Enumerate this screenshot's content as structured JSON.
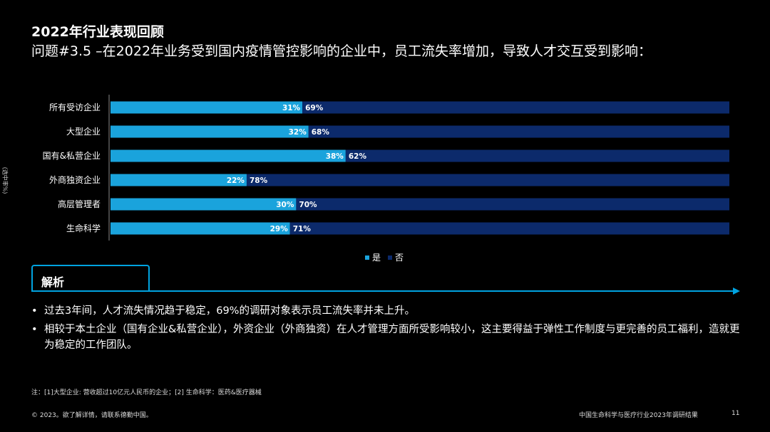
{
  "title": "2022年行业表现回顾",
  "subtitle": "问题#3.5 –在2022年业务受到国内疫情管控影响的企业中，员工流失率增加，导致人才交互受到影响：",
  "side_label": "(选中率%)",
  "analysis_label": "解析",
  "bullets": [
    "过去3年间，人才流失情况趋于稳定，69%的调研对象表示员工流失率并未上升。",
    "相较于本土企业（国有企业&私营企业），外资企业（外商独资）在人才管理方面所受影响较小，这主要得益于弹性工作制度与更完善的员工福利，造就更为稳定的工作团队。"
  ],
  "note": "注：[1]大型企业: 营收超过10亿元人民币的企业；[2] 生命科学：医药&医疗器械",
  "footer_left": "© 2023。欲了解详情，请联系德勤中国。",
  "footer_right": "中国生命科学与医疗行业2023年调研结果",
  "page_number": "11",
  "colors": {
    "yes": "#1aa3dc",
    "no": "#0c2a6b"
  },
  "chart_data": {
    "type": "bar",
    "orientation": "horizontal",
    "stacked": true,
    "categories": [
      "所有受访企业",
      "大型企业",
      "国有&私营企业",
      "外商独资企业",
      "高层管理者",
      "生命科学"
    ],
    "series": [
      {
        "name": "是",
        "values": [
          31,
          32,
          38,
          22,
          30,
          29
        ]
      },
      {
        "name": "否",
        "values": [
          69,
          68,
          62,
          78,
          70,
          71
        ]
      }
    ],
    "value_suffix": "%",
    "xlim": [
      0,
      100
    ],
    "legend_position": "bottom"
  }
}
